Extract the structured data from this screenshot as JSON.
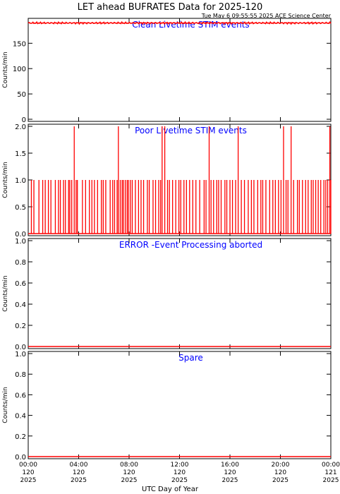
{
  "title": "LET ahead BUFRATES Data for 2025-120",
  "timestamp": "Tue May  6 09:55:55 2025 ACE Science Center",
  "xlabel": "UTC Day of Year",
  "colors": {
    "series": "#ff0000",
    "panel_title": "#0000ff",
    "axes": "#000000"
  },
  "chart_data": [
    {
      "type": "line",
      "title": "Clean Livetime STIM events",
      "ylabel": "Counts/min",
      "ylim": [
        0,
        195
      ],
      "yticks": [
        0,
        50,
        100,
        150
      ],
      "ytick_labels": [
        "0",
        "50",
        "100",
        "150"
      ],
      "x": [
        0,
        24
      ],
      "values": [
        190,
        190
      ],
      "note_values": "constant ~190 with small noise (188-192)"
    },
    {
      "type": "line",
      "title": "Poor Livetime STIM events",
      "ylabel": "Counts/min",
      "ylim": [
        0,
        2.0
      ],
      "yticks": [
        0.0,
        0.5,
        1.0,
        1.5,
        2.0
      ],
      "ytick_labels": [
        "0.0",
        "0.5",
        "1.0",
        "1.5",
        "2.0"
      ],
      "spikes_2": [
        3.65,
        7.15,
        10.62,
        10.83,
        14.35,
        16.65,
        20.25,
        20.85,
        23.92
      ],
      "spikes_1": [
        0.25,
        0.45,
        0.85,
        1.15,
        1.35,
        1.6,
        1.8,
        2.15,
        2.4,
        2.55,
        2.8,
        2.95,
        3.2,
        3.3,
        3.45,
        3.8,
        3.9,
        4.3,
        4.55,
        4.85,
        5.05,
        5.25,
        5.5,
        5.8,
        5.95,
        6.15,
        6.5,
        6.7,
        6.85,
        7.05,
        7.3,
        7.45,
        7.55,
        7.7,
        7.85,
        7.95,
        8.1,
        8.25,
        8.5,
        8.75,
        8.95,
        9.15,
        9.45,
        9.6,
        9.9,
        10.1,
        10.35,
        10.5,
        11.05,
        11.2,
        11.45,
        11.7,
        11.95,
        12.1,
        12.35,
        12.55,
        12.8,
        13.05,
        13.3,
        13.6,
        13.95,
        14.1,
        14.5,
        14.7,
        14.95,
        15.1,
        15.3,
        15.6,
        15.75,
        16.0,
        16.2,
        16.45,
        16.9,
        17.15,
        17.45,
        17.7,
        17.9,
        18.2,
        18.45,
        18.6,
        18.85,
        19.15,
        19.4,
        19.6,
        19.85,
        20.05,
        20.45,
        20.6,
        21.05,
        21.35,
        21.5,
        21.75,
        22.0,
        22.2,
        22.45,
        22.6,
        22.8,
        23.0,
        23.2,
        23.45,
        23.6,
        23.75,
        24.0
      ]
    },
    {
      "type": "line",
      "title": "ERROR -Event Processing aborted",
      "ylabel": "Counts/min",
      "ylim": [
        0,
        1.0
      ],
      "yticks": [
        0.0,
        0.2,
        0.4,
        0.6,
        0.8,
        1.0
      ],
      "ytick_labels": [
        "0.0",
        "0.2",
        "0.4",
        "0.6",
        "0.8",
        "1.0"
      ],
      "x": [
        0,
        24
      ],
      "values": [
        0,
        0
      ]
    },
    {
      "type": "line",
      "title": "Spare",
      "ylabel": "Counts/min",
      "ylim": [
        0,
        1.0
      ],
      "yticks": [
        0.0,
        0.2,
        0.4,
        0.6,
        0.8,
        1.0
      ],
      "ytick_labels": [
        "0.0",
        "0.2",
        "0.4",
        "0.6",
        "0.8",
        "1.0"
      ],
      "x": [
        0,
        24
      ],
      "values": [
        0,
        0
      ]
    }
  ],
  "x_axis": {
    "range_hours": [
      0,
      24
    ],
    "ticks_hours": [
      0,
      4,
      8,
      12,
      16,
      20,
      24
    ],
    "tick_labels": [
      [
        "00:00",
        "120",
        "2025"
      ],
      [
        "04:00",
        "120",
        "2025"
      ],
      [
        "08:00",
        "120",
        "2025"
      ],
      [
        "12:00",
        "120",
        "2025"
      ],
      [
        "16:00",
        "120",
        "2025"
      ],
      [
        "20:00",
        "120",
        "2025"
      ],
      [
        "00:00",
        "121",
        "2025"
      ]
    ]
  }
}
